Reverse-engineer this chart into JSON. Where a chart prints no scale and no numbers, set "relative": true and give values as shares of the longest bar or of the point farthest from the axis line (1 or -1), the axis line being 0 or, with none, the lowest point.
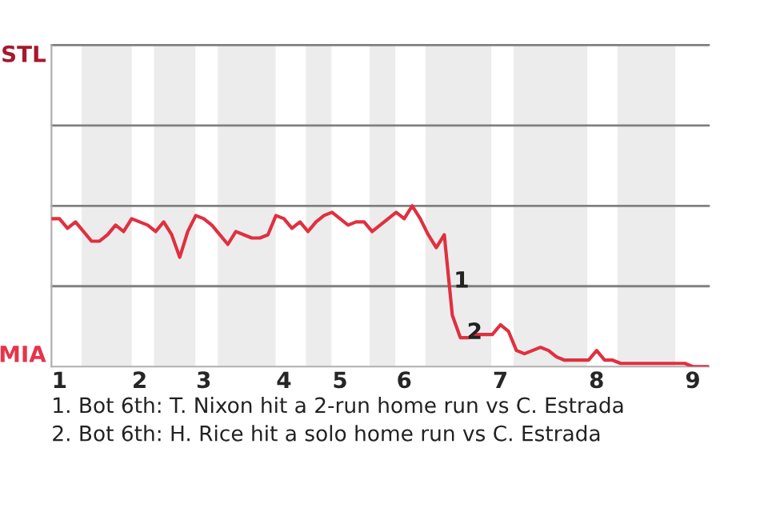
{
  "chart_data": {
    "type": "line",
    "relative": true,
    "categories": [
      null,
      "1",
      null,
      null,
      null,
      null,
      null,
      null,
      null,
      null,
      null,
      "2",
      null,
      null,
      null,
      null,
      null,
      null,
      null,
      "3",
      null,
      null,
      null,
      null,
      null,
      null,
      null,
      null,
      null,
      "4",
      null,
      null,
      null,
      null,
      null,
      null,
      "5",
      null,
      null,
      null,
      null,
      null,
      null,
      null,
      "6",
      null,
      null,
      null,
      null,
      null,
      null,
      null,
      null,
      null,
      null,
      null,
      "7",
      null,
      null,
      null,
      null,
      null,
      null,
      null,
      null,
      null,
      null,
      null,
      "8",
      null,
      null,
      null,
      null,
      null,
      null,
      null,
      null,
      null,
      null,
      null,
      "9",
      null,
      null
    ],
    "series": [
      {
        "color": "#e0303f",
        "values": [
          0.92,
          0.92,
          0.86,
          0.9,
          0.84,
          0.78,
          0.78,
          0.82,
          0.88,
          0.84,
          0.92,
          0.9,
          0.88,
          0.84,
          0.9,
          0.82,
          0.68,
          0.84,
          0.94,
          0.92,
          0.88,
          0.82,
          0.76,
          0.84,
          0.82,
          0.8,
          0.8,
          0.82,
          0.94,
          0.92,
          0.86,
          0.9,
          0.84,
          0.9,
          0.94,
          0.96,
          0.92,
          0.88,
          0.9,
          0.9,
          0.84,
          0.88,
          0.92,
          0.96,
          0.92,
          1,
          0.92,
          0.82,
          0.74,
          0.82,
          0.32,
          0.18,
          0.18,
          0.2,
          0.2,
          0.2,
          0.26,
          0.22,
          0.1,
          0.08,
          0.1,
          0.12,
          0.1,
          0.06,
          0.04,
          0.04,
          0.04,
          0.04,
          0.1,
          0.04,
          0.04,
          0.02,
          0.02,
          0.02,
          0.02,
          0.02,
          0.02,
          0.02,
          0.02,
          0.02,
          0,
          0,
          0
        ]
      }
    ],
    "ref_lines": [
      {
        "axis": "y",
        "value": 0.5,
        "color": "#808080"
      },
      {
        "axis": "y",
        "value": 1,
        "color": "#808080"
      },
      {
        "axis": "y",
        "value": 1.5,
        "color": "#808080"
      },
      {
        "axis": "y",
        "value": 2,
        "color": "#808080"
      }
    ],
    "annotations": [
      "STL",
      "MIA",
      "1",
      "2",
      "1. Bot 6th: T. Nixon hit a 2-run home run vs C. Estrada",
      "2. Bot 6th: H. Rice hit a solo home run vs C. Estrada"
    ]
  }
}
